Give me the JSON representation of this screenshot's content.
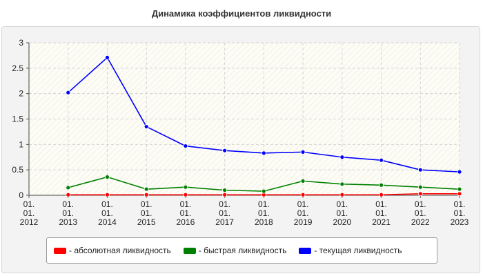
{
  "chart_data": {
    "type": "line",
    "title": "Динамика коэффициентов ликвидности",
    "xlabel": "",
    "ylabel": "",
    "categories": [
      [
        "01.",
        "01.",
        "2012"
      ],
      [
        "01.",
        "01.",
        "2013"
      ],
      [
        "01.",
        "01.",
        "2014"
      ],
      [
        "01.",
        "01.",
        "2015"
      ],
      [
        "01.",
        "01.",
        "2016"
      ],
      [
        "01.",
        "01.",
        "2017"
      ],
      [
        "01.",
        "01.",
        "2018"
      ],
      [
        "01.",
        "01.",
        "2019"
      ],
      [
        "01.",
        "01.",
        "2020"
      ],
      [
        "01.",
        "01.",
        "2021"
      ],
      [
        "01.",
        "01.",
        "2022"
      ],
      [
        "01.",
        "01.",
        "2023"
      ]
    ],
    "ylim": [
      0,
      3
    ],
    "yticks": [
      "0",
      "0.5",
      "1",
      "1.5",
      "2",
      "2.5",
      "3"
    ],
    "grid": true,
    "legend_position": "bottom",
    "series": [
      {
        "name": "- абсолютная ликвидность",
        "color": "#ff0000",
        "values": [
          null,
          0.01,
          0.01,
          0.01,
          0.01,
          0.01,
          0.01,
          0.01,
          0.01,
          0.01,
          0.03,
          0.03
        ]
      },
      {
        "name": "- быстрая ликвидность",
        "color": "#008000",
        "values": [
          null,
          0.15,
          0.36,
          0.12,
          0.16,
          0.1,
          0.08,
          0.28,
          0.22,
          0.2,
          0.16,
          0.12
        ]
      },
      {
        "name": "- текущая ликвидность",
        "color": "#0000ff",
        "values": [
          null,
          2.02,
          2.71,
          1.35,
          0.97,
          0.88,
          0.83,
          0.85,
          0.75,
          0.69,
          0.5,
          0.46
        ]
      }
    ]
  }
}
